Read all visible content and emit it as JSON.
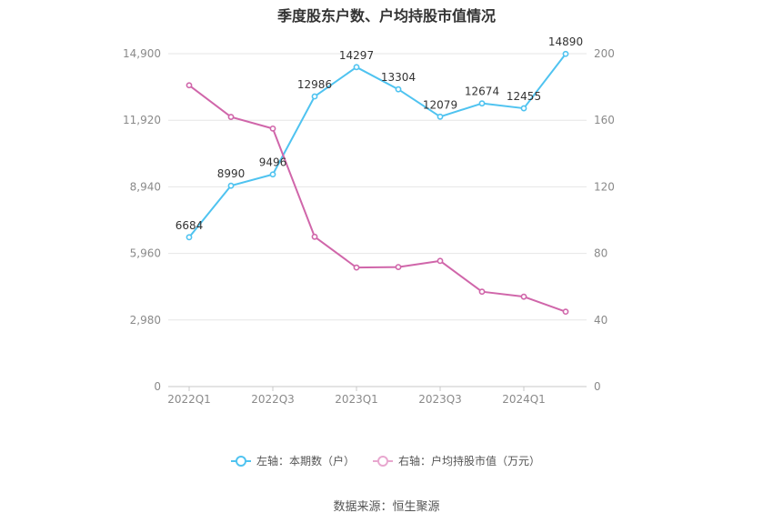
{
  "chart_data": {
    "type": "line",
    "title": "季度股东户数、户均持股市值情况",
    "categories": [
      "2022Q1",
      "2022Q2",
      "2022Q3",
      "2022Q4",
      "2023Q1",
      "2023Q2",
      "2023Q3",
      "2023Q4",
      "2024Q1",
      "2024Q2"
    ],
    "x_tick_labels": [
      "2022Q1",
      "",
      "2022Q3",
      "",
      "2023Q1",
      "",
      "2023Q3",
      "",
      "2024Q1",
      ""
    ],
    "left_axis": {
      "ticks": [
        "0",
        "2,980",
        "5,960",
        "8,940",
        "11,920",
        "14,900"
      ],
      "ylim": [
        0,
        14900
      ]
    },
    "right_axis": {
      "ticks": [
        "0",
        "40",
        "80",
        "120",
        "160",
        "200"
      ],
      "ylim": [
        0,
        200
      ]
    },
    "grid": true,
    "legend_position": "bottom-center",
    "series": [
      {
        "name": "左轴：本期数（户）",
        "axis": "left",
        "color": "#4fc3f0",
        "values": [
          6684,
          8990,
          9496,
          12986,
          14297,
          13304,
          12079,
          12674,
          12455,
          14890
        ],
        "data_labels": [
          "6684",
          "8990",
          "9496",
          "12986",
          "14297",
          "13304",
          "12079",
          "12674",
          "12455",
          "14890"
        ]
      },
      {
        "name": "右轴：户均持股市值（万元）",
        "axis": "right",
        "color": "#d066aa",
        "legend_color": "#e8a7cf",
        "values": [
          181,
          162,
          155,
          90,
          71.5,
          71.8,
          75.5,
          57,
          54,
          45
        ]
      }
    ]
  },
  "footer": {
    "source": "数据来源：恒生聚源"
  }
}
